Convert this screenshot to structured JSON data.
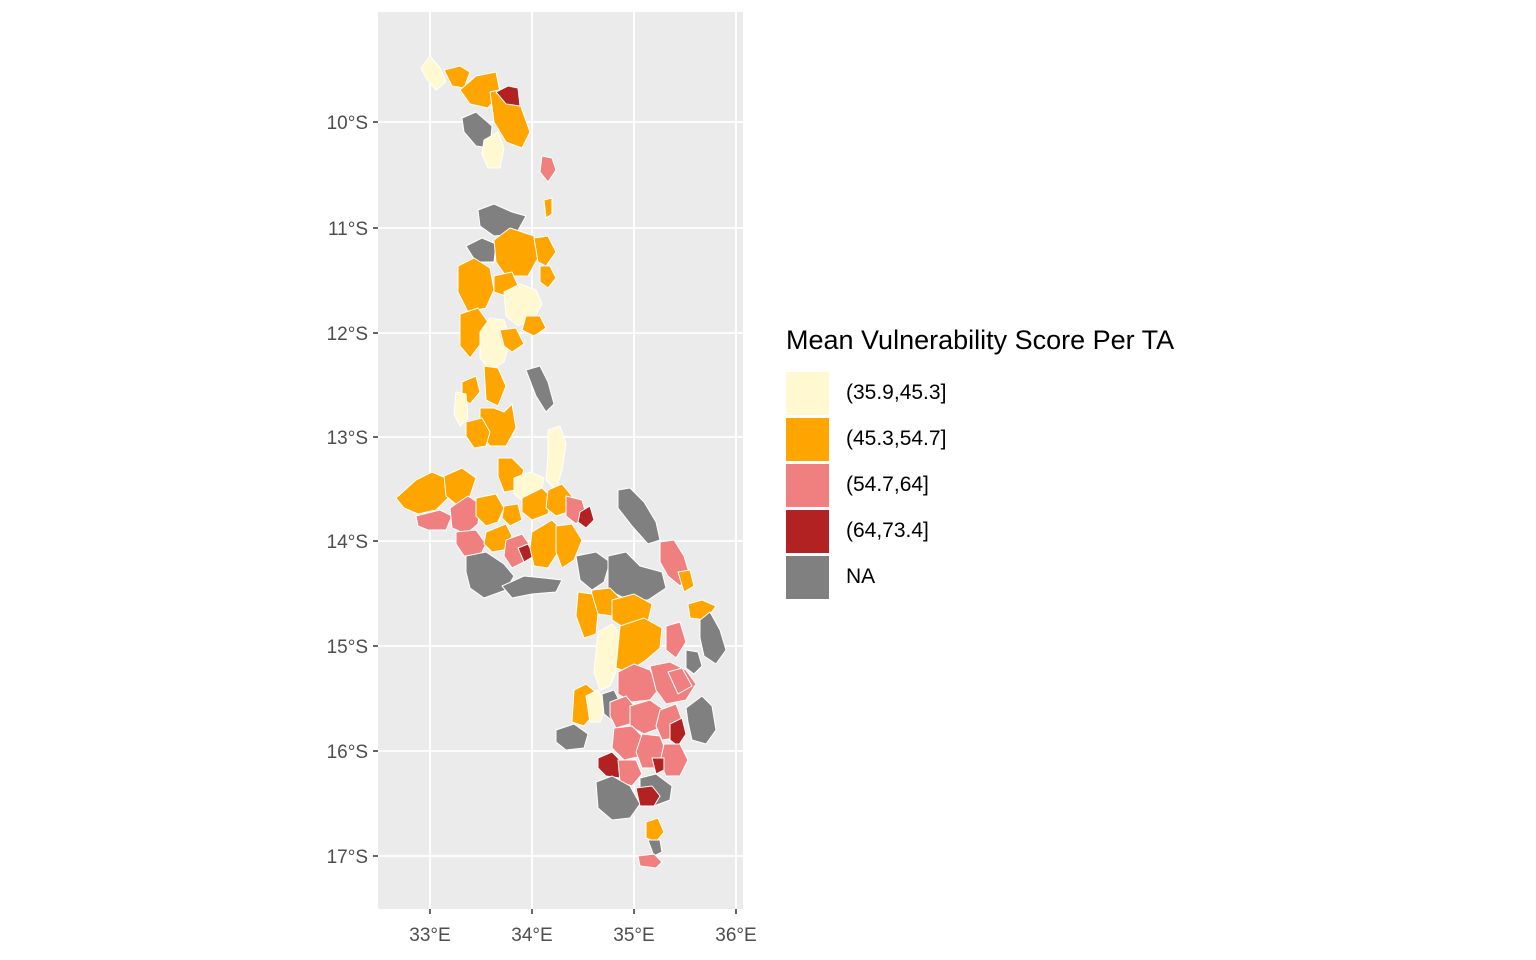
{
  "legend": {
    "title": "Mean Vulnerability Score Per TA",
    "items": [
      {
        "label": "(35.9,45.3]",
        "color": "#fff8d0"
      },
      {
        "label": "(45.3,54.7]",
        "color": "#ffa500"
      },
      {
        "label": "(54.7,64]",
        "color": "#f08080"
      },
      {
        "label": "(64,73.4]",
        "color": "#b22222"
      },
      {
        "label": "NA",
        "color": "#808080"
      }
    ]
  },
  "axes": {
    "x_ticks": [
      "33°E",
      "34°E",
      "35°E",
      "36°E"
    ],
    "y_ticks": [
      "10°S",
      "11°S",
      "12°S",
      "13°S",
      "14°S",
      "15°S",
      "16°S",
      "17°S"
    ]
  },
  "colors": {
    "panel": "#ebebeb",
    "grid": "#ffffff",
    "region_border": "#ffffff"
  }
}
